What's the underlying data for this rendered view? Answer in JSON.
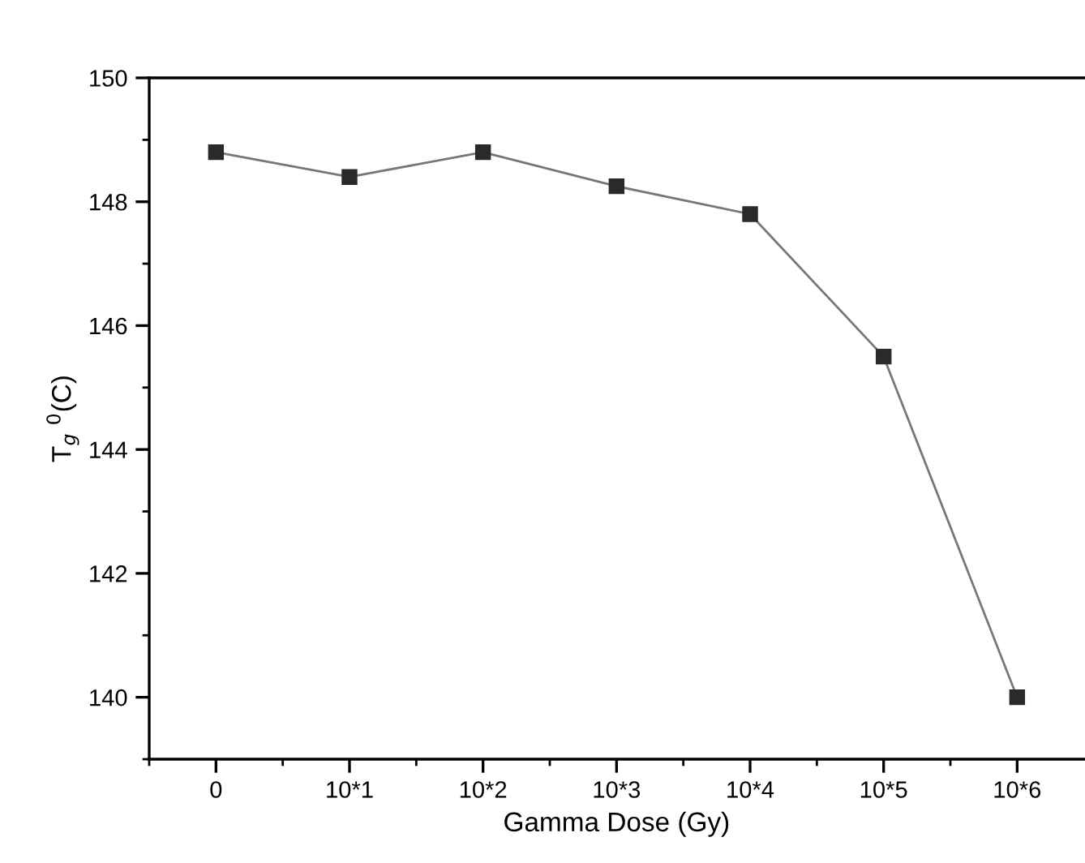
{
  "chart_data": {
    "type": "line",
    "xlabel": "Gamma Dose (Gy)",
    "ylabel": "T$_{g}$ $^{0}$(C)",
    "categories": [
      "0",
      "10*1",
      "10*2",
      "10*3",
      "10*4",
      "10*5",
      "10*6"
    ],
    "series": [
      {
        "color": "#2a2a2a",
        "values": [
          148.8,
          148.4,
          148.8,
          148.25,
          147.8,
          145.5,
          140.0
        ]
      }
    ],
    "ylim": [
      139,
      150
    ],
    "yticks": [
      140,
      142,
      144,
      146,
      148,
      150
    ],
    "marker": "square",
    "line_style": "solid",
    "grid": false,
    "legend": false
  }
}
